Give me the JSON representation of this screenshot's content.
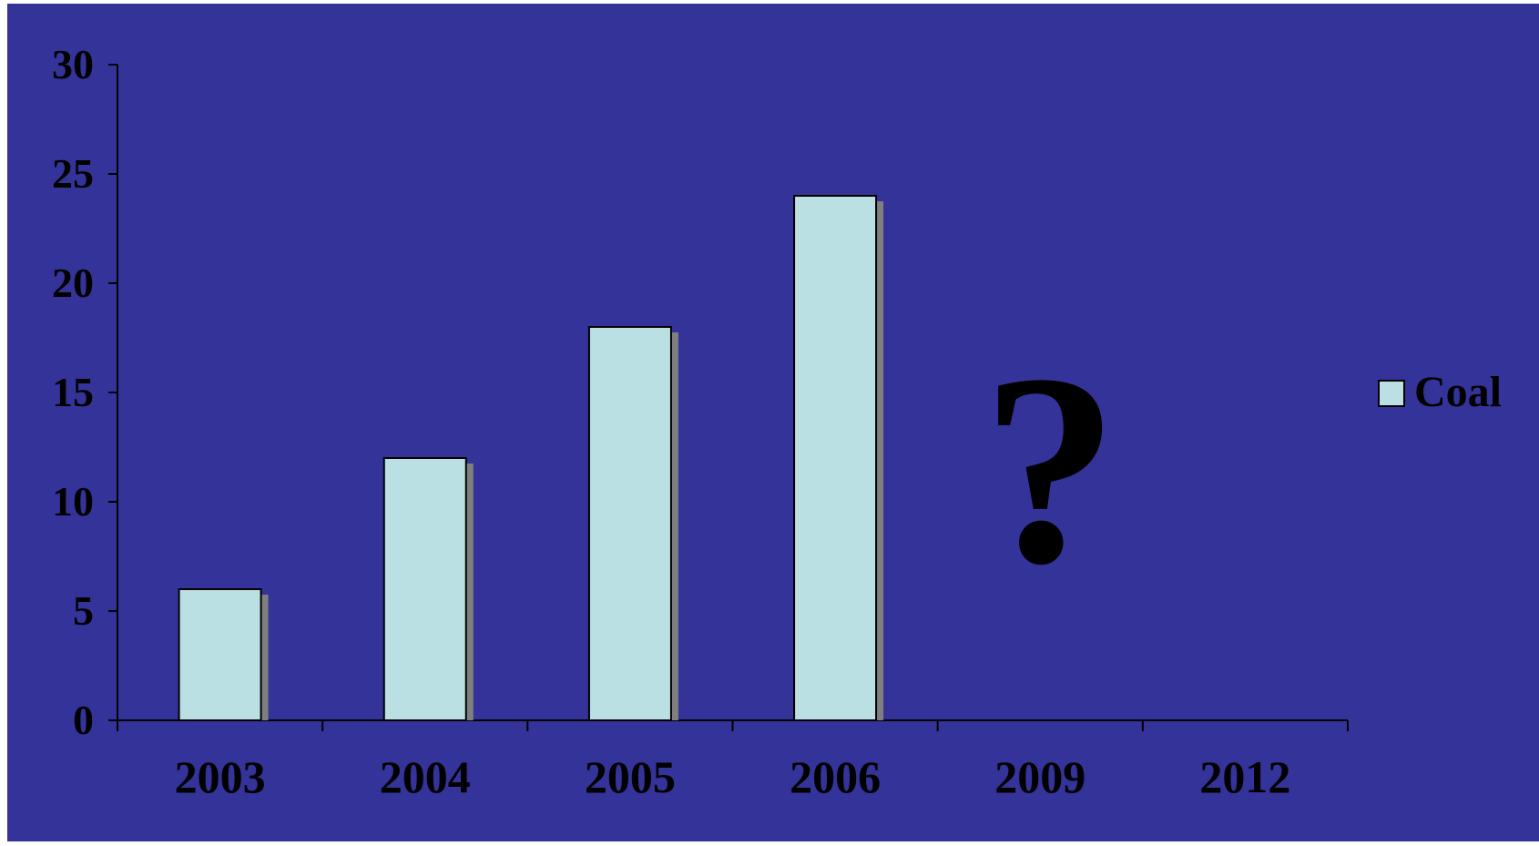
{
  "colors": {
    "background": "#343399",
    "bar_fill": "#bbe0e3",
    "bar_stroke": "#000000",
    "bar_shadow": "#7f7f7f",
    "axis": "#000000",
    "text": "#000000"
  },
  "annotation": "?",
  "chart_data": {
    "type": "bar",
    "categories": [
      "2003",
      "2004",
      "2005",
      "2006",
      "2009",
      "2012"
    ],
    "series": [
      {
        "name": "Coal",
        "values": [
          6,
          12,
          18,
          24,
          null,
          null
        ]
      }
    ],
    "ylim": [
      0,
      30
    ],
    "yticks": [
      0,
      5,
      10,
      15,
      20,
      25,
      30
    ],
    "legend": "right",
    "grid": false
  }
}
